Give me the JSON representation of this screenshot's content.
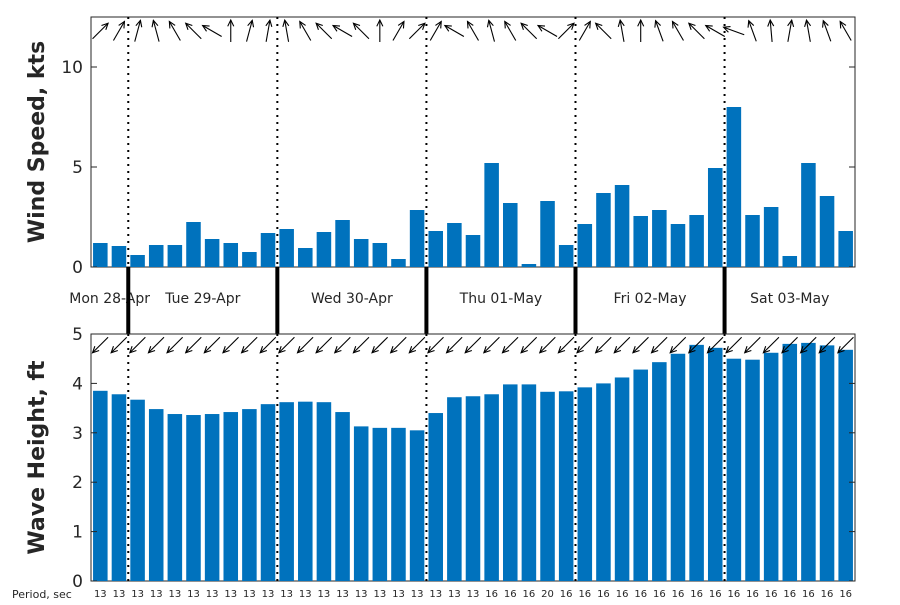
{
  "colors": {
    "bar": "#0072BD",
    "axis": "#262626",
    "arrow": "#000000"
  },
  "chart_data": [
    {
      "type": "bar",
      "ylabel": "Wind Speed, kts",
      "ylim": [
        0,
        12.5
      ],
      "yticks": [
        0,
        5,
        10
      ],
      "values": [
        1.2,
        1.05,
        0.6,
        1.1,
        1.1,
        2.25,
        1.4,
        1.2,
        0.75,
        1.7,
        1.9,
        0.95,
        1.75,
        2.35,
        1.4,
        1.2,
        0.4,
        2.85,
        1.8,
        2.2,
        1.6,
        5.2,
        3.2,
        0.15,
        3.3,
        1.1,
        2.15,
        3.7,
        4.1,
        2.55,
        2.85,
        2.15,
        2.6,
        4.95,
        8.0,
        2.6,
        3.0,
        0.55,
        5.2,
        3.55,
        1.8
      ],
      "direction_arrows_deg": [
        45,
        60,
        75,
        105,
        120,
        135,
        150,
        90,
        75,
        80,
        100,
        120,
        135,
        150,
        135,
        90,
        60,
        45,
        60,
        150,
        120,
        105,
        120,
        135,
        150,
        45,
        60,
        135,
        100,
        90,
        110,
        120,
        135,
        150,
        160,
        110,
        95,
        80,
        100,
        110,
        120
      ]
    },
    {
      "type": "bar",
      "ylabel": "Wave Height, ft",
      "ylim": [
        0,
        5
      ],
      "yticks": [
        0,
        1,
        2,
        3,
        4,
        5
      ],
      "values": [
        3.85,
        3.78,
        3.67,
        3.48,
        3.38,
        3.36,
        3.38,
        3.42,
        3.48,
        3.58,
        3.62,
        3.63,
        3.62,
        3.42,
        3.13,
        3.1,
        3.1,
        3.05,
        3.4,
        3.72,
        3.74,
        3.78,
        3.98,
        3.98,
        3.83,
        3.84,
        3.92,
        4.0,
        4.12,
        4.28,
        4.43,
        4.6,
        4.78,
        4.72,
        4.5,
        4.48,
        4.62,
        4.8,
        4.82,
        4.77,
        4.68
      ],
      "direction_arrows_deg": [
        225,
        225,
        225,
        225,
        225,
        225,
        225,
        225,
        225,
        225,
        225,
        225,
        225,
        225,
        225,
        225,
        225,
        225,
        225,
        225,
        225,
        225,
        225,
        225,
        225,
        225,
        225,
        225,
        225,
        225,
        225,
        225,
        225,
        225,
        225,
        225,
        225,
        225,
        225,
        225,
        225
      ]
    }
  ],
  "days": [
    {
      "label": "Mon 28-Apr",
      "boundary_after_bar": 1
    },
    {
      "label": "Tue 29-Apr",
      "boundary_after_bar": 9
    },
    {
      "label": "Wed 30-Apr",
      "boundary_after_bar": 17
    },
    {
      "label": "Thu 01-May",
      "boundary_after_bar": 25
    },
    {
      "label": "Fri 02-May",
      "boundary_after_bar": 33
    },
    {
      "label": "Sat 03-May",
      "boundary_after_bar": null
    }
  ],
  "period_label": "Period, sec",
  "periods": [
    "13",
    "13",
    "13",
    "13",
    "13",
    "13",
    "13",
    "13",
    "13",
    "13",
    "13",
    "13",
    "13",
    "13",
    "13",
    "13",
    "13",
    "13",
    "13",
    "13",
    "13",
    "16",
    "16",
    "16",
    "20",
    "16",
    "16",
    "16",
    "16",
    "16",
    "16",
    "16",
    "16",
    "16",
    "16",
    "16",
    "16",
    "16",
    "16",
    "16",
    "16"
  ]
}
